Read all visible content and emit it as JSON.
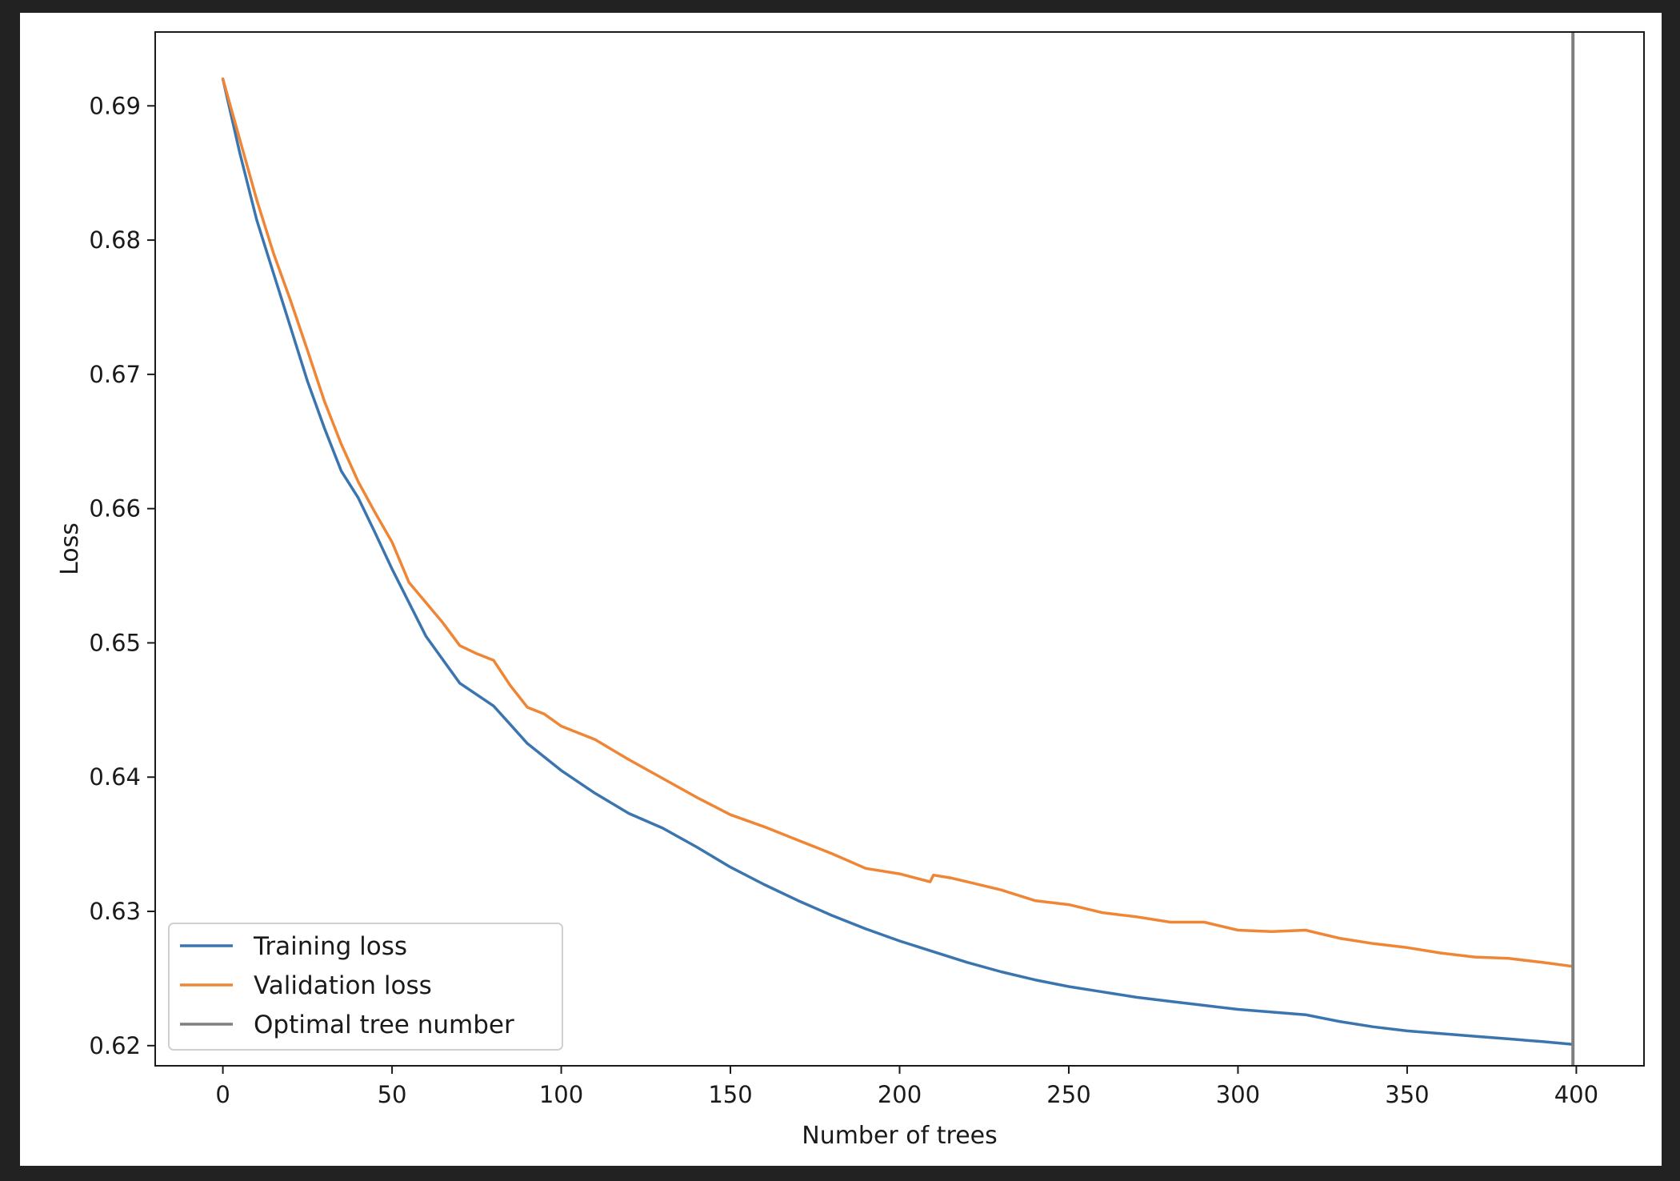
{
  "chart_data": {
    "type": "line",
    "title": "",
    "xlabel": "Number of trees",
    "ylabel": "Loss",
    "xlim": [
      -20,
      420
    ],
    "ylim": [
      0.6185,
      0.6955
    ],
    "xticks": [
      0,
      50,
      100,
      150,
      200,
      250,
      300,
      350,
      400
    ],
    "yticks": [
      0.62,
      0.63,
      0.64,
      0.65,
      0.66,
      0.67,
      0.68,
      0.69
    ],
    "xtick_labels": [
      "0",
      "50",
      "100",
      "150",
      "200",
      "250",
      "300",
      "350",
      "400"
    ],
    "ytick_labels": [
      "0.62",
      "0.63",
      "0.64",
      "0.65",
      "0.66",
      "0.67",
      "0.68",
      "0.69"
    ],
    "grid": false,
    "legend_position": "lower-left",
    "series": [
      {
        "name": "Training loss",
        "color": "#3b75af",
        "x": [
          0,
          5,
          10,
          15,
          20,
          25,
          30,
          35,
          40,
          45,
          50,
          60,
          70,
          80,
          90,
          100,
          110,
          120,
          130,
          140,
          150,
          160,
          170,
          180,
          190,
          200,
          210,
          220,
          230,
          240,
          250,
          260,
          270,
          280,
          290,
          300,
          310,
          320,
          330,
          340,
          350,
          360,
          370,
          380,
          390,
          399
        ],
        "y": [
          0.692,
          0.6865,
          0.6815,
          0.6775,
          0.6735,
          0.6695,
          0.666,
          0.6628,
          0.6608,
          0.6582,
          0.6555,
          0.6505,
          0.647,
          0.6453,
          0.6425,
          0.6405,
          0.6388,
          0.6373,
          0.6362,
          0.6348,
          0.6333,
          0.632,
          0.6308,
          0.6297,
          0.6287,
          0.6278,
          0.627,
          0.6262,
          0.6255,
          0.6249,
          0.6244,
          0.624,
          0.6236,
          0.6233,
          0.623,
          0.6227,
          0.6225,
          0.6223,
          0.6218,
          0.6214,
          0.6211,
          0.6209,
          0.6207,
          0.6205,
          0.6203,
          0.6201
        ]
      },
      {
        "name": "Validation loss",
        "color": "#ef8636",
        "x": [
          0,
          5,
          10,
          15,
          20,
          25,
          30,
          35,
          40,
          45,
          50,
          55,
          60,
          65,
          70,
          75,
          80,
          85,
          90,
          95,
          100,
          110,
          120,
          130,
          140,
          150,
          160,
          170,
          180,
          190,
          200,
          209,
          210,
          215,
          220,
          230,
          240,
          250,
          260,
          270,
          280,
          290,
          300,
          310,
          320,
          330,
          340,
          350,
          360,
          370,
          380,
          390,
          399
        ],
        "y": [
          0.692,
          0.6875,
          0.683,
          0.679,
          0.6755,
          0.6718,
          0.668,
          0.6648,
          0.662,
          0.6597,
          0.6575,
          0.6545,
          0.653,
          0.6515,
          0.6498,
          0.6492,
          0.6487,
          0.6468,
          0.6452,
          0.6447,
          0.6438,
          0.6428,
          0.6413,
          0.6399,
          0.6385,
          0.6372,
          0.6363,
          0.6353,
          0.6343,
          0.6332,
          0.6328,
          0.6322,
          0.6327,
          0.6325,
          0.6322,
          0.6316,
          0.6308,
          0.6305,
          0.6299,
          0.6296,
          0.6292,
          0.6292,
          0.6286,
          0.6285,
          0.6286,
          0.628,
          0.6276,
          0.6273,
          0.6269,
          0.6266,
          0.6265,
          0.6262,
          0.6259
        ]
      }
    ],
    "vlines": [
      {
        "name": "Optimal tree number",
        "x": 399,
        "color": "#7f7f7f"
      }
    ]
  }
}
